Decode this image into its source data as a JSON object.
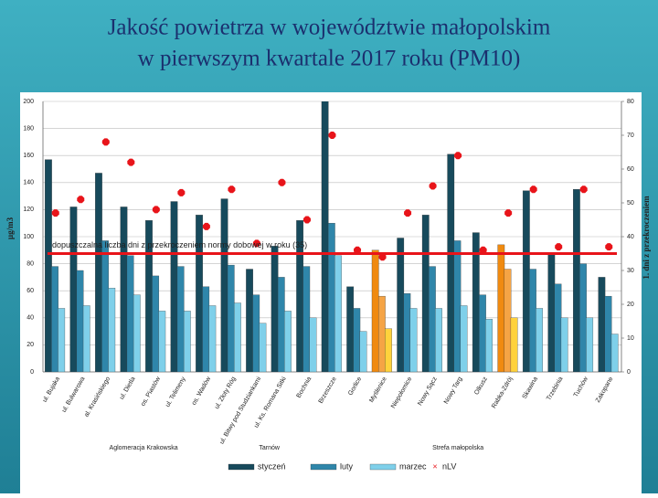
{
  "chart_data": {
    "type": "bar",
    "title": "Jakość powietrza w województwie małopolskim",
    "subtitle": "w pierwszym kwartale 2017 roku (PM10)",
    "y_label": "µg/m3",
    "y2_label": "1. dni z przekroczeniem",
    "threshold_label": "dopuszczalna liczba dni z przekroczeniem normy dobowej w roku (35)",
    "threshold": 35,
    "threshold_color": "#e8141a",
    "groups": [
      "Aglomeracja Krakowska",
      "Tarnów",
      "Strefa małopolska"
    ],
    "categories": [
      "ul. Bujaka",
      "ul. Bulwarowa",
      "al. Krasińskiego",
      "ul. Dietla",
      "os. Piastów",
      "ul. Telimeny",
      "os. Wadów",
      "ul. Złoty Róg",
      "ul. Bitwy pod Studziankami",
      "ul. Ks. Romana Sitki",
      "Bochnia",
      "Brzeszcze",
      "Gorlice",
      "Myślenice",
      "Niepołomice",
      "Nowy Sącz",
      "Nowy Targ",
      "Olkusz",
      "Rabka-Zdrój",
      "Skawina",
      "Trzebinia",
      "Tuchów",
      "Zakopane"
    ],
    "series": [
      {
        "name": "styczeń",
        "values": [
          157,
          122,
          147,
          122,
          112,
          126,
          116,
          128,
          76,
          93,
          112,
          210,
          63,
          90,
          99,
          116,
          161,
          103,
          94,
          134,
          88,
          135,
          70
        ],
        "colors": [
          "#174a5c",
          "#174a5c",
          "#174a5c",
          "#174a5c",
          "#174a5c",
          "#174a5c",
          "#174a5c",
          "#174a5c",
          "#174a5c",
          "#174a5c",
          "#174a5c",
          "#174a5c",
          "#174a5c",
          "#f08a10",
          "#174a5c",
          "#174a5c",
          "#174a5c",
          "#174a5c",
          "#f08a10",
          "#174a5c",
          "#174a5c",
          "#174a5c",
          "#174a5c"
        ]
      },
      {
        "name": "luty",
        "values": [
          78,
          75,
          97,
          86,
          71,
          78,
          63,
          79,
          57,
          70,
          78,
          110,
          47,
          56,
          58,
          78,
          97,
          57,
          76,
          76,
          65,
          80,
          56
        ],
        "colors": [
          "#2f86aa",
          "#2f86aa",
          "#2f86aa",
          "#2f86aa",
          "#2f86aa",
          "#2f86aa",
          "#2f86aa",
          "#2f86aa",
          "#2f86aa",
          "#2f86aa",
          "#2f86aa",
          "#2f86aa",
          "#2f86aa",
          "#f5a445",
          "#2f86aa",
          "#2f86aa",
          "#2f86aa",
          "#2f86aa",
          "#f5a445",
          "#2f86aa",
          "#2f86aa",
          "#2f86aa",
          "#2f86aa"
        ]
      },
      {
        "name": "marzec",
        "values": [
          47,
          49,
          62,
          57,
          45,
          45,
          49,
          51,
          36,
          45,
          40,
          86,
          30,
          32,
          47,
          47,
          49,
          39,
          40,
          47,
          40,
          40,
          28
        ],
        "colors": [
          "#7fd0ea",
          "#7fd0ea",
          "#7fd0ea",
          "#7fd0ea",
          "#7fd0ea",
          "#7fd0ea",
          "#7fd0ea",
          "#7fd0ea",
          "#7fd0ea",
          "#7fd0ea",
          "#7fd0ea",
          "#7fd0ea",
          "#7fd0ea",
          "#ffd23c",
          "#7fd0ea",
          "#7fd0ea",
          "#7fd0ea",
          "#7fd0ea",
          "#ffd23c",
          "#7fd0ea",
          "#7fd0ea",
          "#7fd0ea",
          "#7fd0ea"
        ]
      },
      {
        "name": "nLV",
        "type": "scatter",
        "axis": "y2",
        "color": "#e8141a",
        "values": [
          47,
          51,
          68,
          62,
          48,
          53,
          43,
          54,
          38,
          56,
          45,
          70,
          36,
          34,
          47,
          55,
          64,
          36,
          47,
          54,
          37,
          54,
          37
        ]
      }
    ],
    "ylim": [
      0,
      200
    ],
    "yticks": [
      0,
      20,
      40,
      60,
      80,
      100,
      120,
      140,
      160,
      180,
      200
    ],
    "y2lim": [
      0,
      80
    ],
    "y2ticks": [
      0,
      10,
      20,
      30,
      40,
      50,
      60,
      70,
      80
    ]
  }
}
